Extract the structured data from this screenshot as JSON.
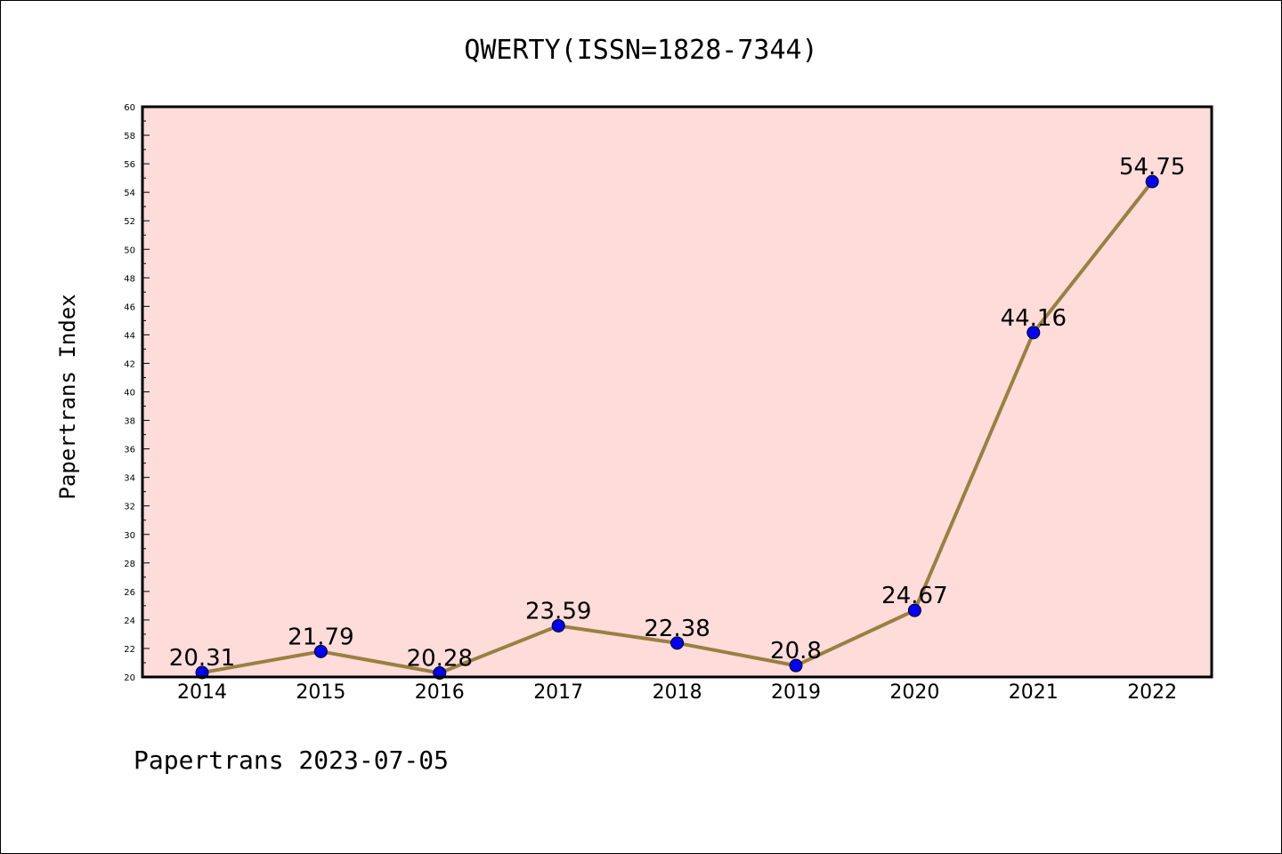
{
  "chart_data": {
    "type": "line",
    "title": "QWERTY(ISSN=1828-7344)",
    "xlabel": "",
    "ylabel": "Papertrans Index",
    "categories": [
      "2014",
      "2015",
      "2016",
      "2017",
      "2018",
      "2019",
      "2020",
      "2021",
      "2022"
    ],
    "series": [
      {
        "values": [
          20.31,
          21.79,
          20.28,
          23.59,
          22.38,
          20.8,
          24.67,
          44.16,
          54.75
        ],
        "labels": [
          "20.31",
          "21.79",
          "20.28",
          "23.59",
          "22.38",
          "20.8",
          "24.67",
          "44.16",
          "54.75"
        ]
      }
    ],
    "ylim": [
      20,
      60
    ],
    "ytick_step": 2,
    "grid": false,
    "plot_background": "#fddcda",
    "line_color": "#9a8040",
    "marker_color": "#0000ff"
  },
  "footer": "Papertrans 2023-07-05"
}
